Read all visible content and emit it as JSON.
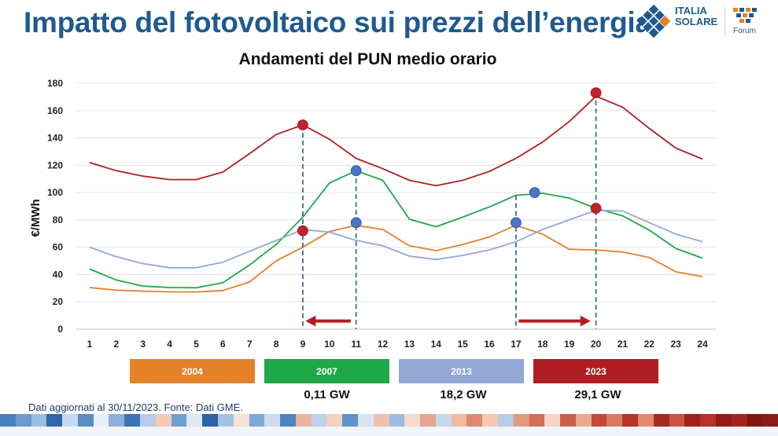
{
  "slide": {
    "title": "Impatto del fotovoltaico sui prezzi dell’energia",
    "footnote": "Dati aggiornati al 30/11/2023. Fonte: Dati GME."
  },
  "logo": {
    "line1": "ITALIA",
    "line2": "SOLARE",
    "forum": "Forum"
  },
  "colors": {
    "title_blue": "#1f5a8f",
    "s2004": "#e4822a",
    "s2007": "#1ea84a",
    "s2013": "#92a8d6",
    "s2023": "#b01e22",
    "marker_red": "#c0232b",
    "marker_blue": "#4a74c7",
    "guide": "#3d6a9e"
  },
  "chart_data": {
    "type": "line",
    "title": "Andamenti del PUN medio orario",
    "ylabel": "€/MWh",
    "xlabel": "",
    "ylim": [
      0,
      180
    ],
    "yticks": [
      0,
      20,
      40,
      60,
      80,
      100,
      120,
      140,
      160,
      180
    ],
    "grid": true,
    "legend_position": "bottom",
    "x": [
      1,
      2,
      3,
      4,
      5,
      6,
      7,
      8,
      9,
      10,
      11,
      12,
      13,
      14,
      15,
      16,
      17,
      18,
      19,
      20,
      21,
      22,
      23,
      24
    ],
    "series": [
      {
        "name": "2004",
        "values": [
          30.5,
          28.5,
          27.8,
          27.3,
          27.2,
          28.3,
          34.5,
          50,
          60,
          71.5,
          76,
          73,
          61,
          57.5,
          62,
          67.5,
          76,
          69.5,
          58.5,
          58,
          56.5,
          52.5,
          42,
          38.5
        ]
      },
      {
        "name": "2007",
        "values": [
          44,
          36,
          31.5,
          30.5,
          30.3,
          34,
          47,
          62,
          82,
          107,
          116,
          109,
          80.5,
          75,
          82,
          89.5,
          98,
          99.5,
          96,
          88.5,
          83,
          72.5,
          59,
          52
        ]
      },
      {
        "name": "2013",
        "values": [
          60,
          53,
          48,
          45,
          45,
          49,
          57,
          65,
          73,
          71,
          65,
          61,
          53.5,
          51,
          54,
          58,
          64,
          73,
          80,
          87,
          86.5,
          78,
          69.5,
          64
        ]
      },
      {
        "name": "2023",
        "values": [
          122,
          116,
          112,
          109.5,
          109.5,
          115,
          128.5,
          142.5,
          149.5,
          139,
          125,
          117.5,
          109,
          105,
          109,
          115.5,
          125,
          137,
          152,
          170.5,
          162.5,
          147,
          132.5,
          124.5
        ]
      }
    ],
    "markers": [
      {
        "x": 9,
        "y": 149.5,
        "color": "red"
      },
      {
        "x": 9,
        "y": 72,
        "color": "red"
      },
      {
        "x": 11,
        "y": 116,
        "color": "blue"
      },
      {
        "x": 11,
        "y": 78,
        "color": "blue"
      },
      {
        "x": 17,
        "y": 78,
        "color": "blue"
      },
      {
        "x": 17.7,
        "y": 100,
        "color": "blue"
      },
      {
        "x": 20,
        "y": 173,
        "color": "red"
      },
      {
        "x": 20,
        "y": 88.5,
        "color": "red"
      }
    ],
    "guide_lines": [
      {
        "x": 9,
        "top": 149.5
      },
      {
        "x": 11,
        "top": 116
      },
      {
        "x": 17,
        "top": 98
      },
      {
        "x": 20,
        "top": 173
      }
    ],
    "arrows": [
      {
        "from": 10.8,
        "to": 9.1,
        "y": 6
      },
      {
        "from": 17.1,
        "to": 19.8,
        "y": 6
      }
    ],
    "legend": [
      {
        "label": "2004",
        "capacity": ""
      },
      {
        "label": "2007",
        "capacity": "0,11 GW"
      },
      {
        "label": "2013",
        "capacity": "18,2 GW"
      },
      {
        "label": "2023",
        "capacity": "29,1 GW"
      }
    ]
  }
}
